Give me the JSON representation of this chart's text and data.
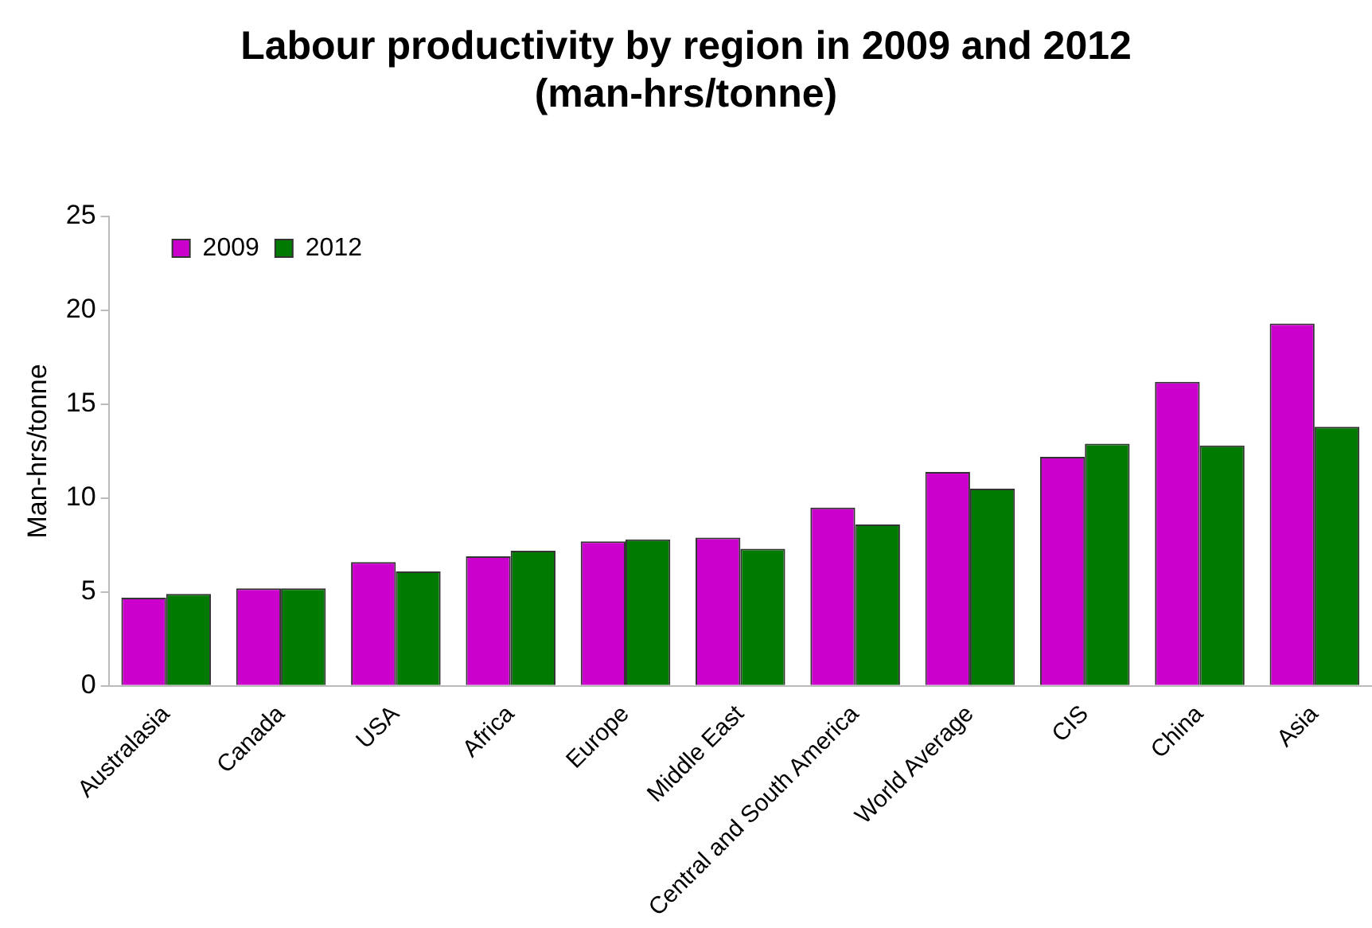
{
  "chart_data": {
    "type": "bar",
    "title": "Labour productivity by region in 2009 and 2012\n(man-hrs/tonne)",
    "ylabel": "Man-hrs/tonne",
    "categories": [
      "Australasia",
      "Canada",
      "USA",
      "Africa",
      "Europe",
      "Middle East",
      "Central and South America",
      "World Average",
      "CIS",
      "China",
      "Asia"
    ],
    "series": [
      {
        "name": "2009",
        "color": "#cc00cc",
        "values": [
          4.7,
          5.2,
          6.6,
          6.9,
          7.7,
          7.9,
          9.5,
          11.4,
          12.2,
          16.2,
          19.3
        ]
      },
      {
        "name": "2012",
        "color": "#007a00",
        "values": [
          4.9,
          5.2,
          6.1,
          7.2,
          7.8,
          7.3,
          8.6,
          10.5,
          12.9,
          12.8,
          13.8
        ]
      }
    ],
    "ylim": [
      0,
      25
    ],
    "yticks": [
      0,
      5,
      10,
      15,
      20,
      25
    ],
    "grid": false,
    "legend": "top left"
  }
}
